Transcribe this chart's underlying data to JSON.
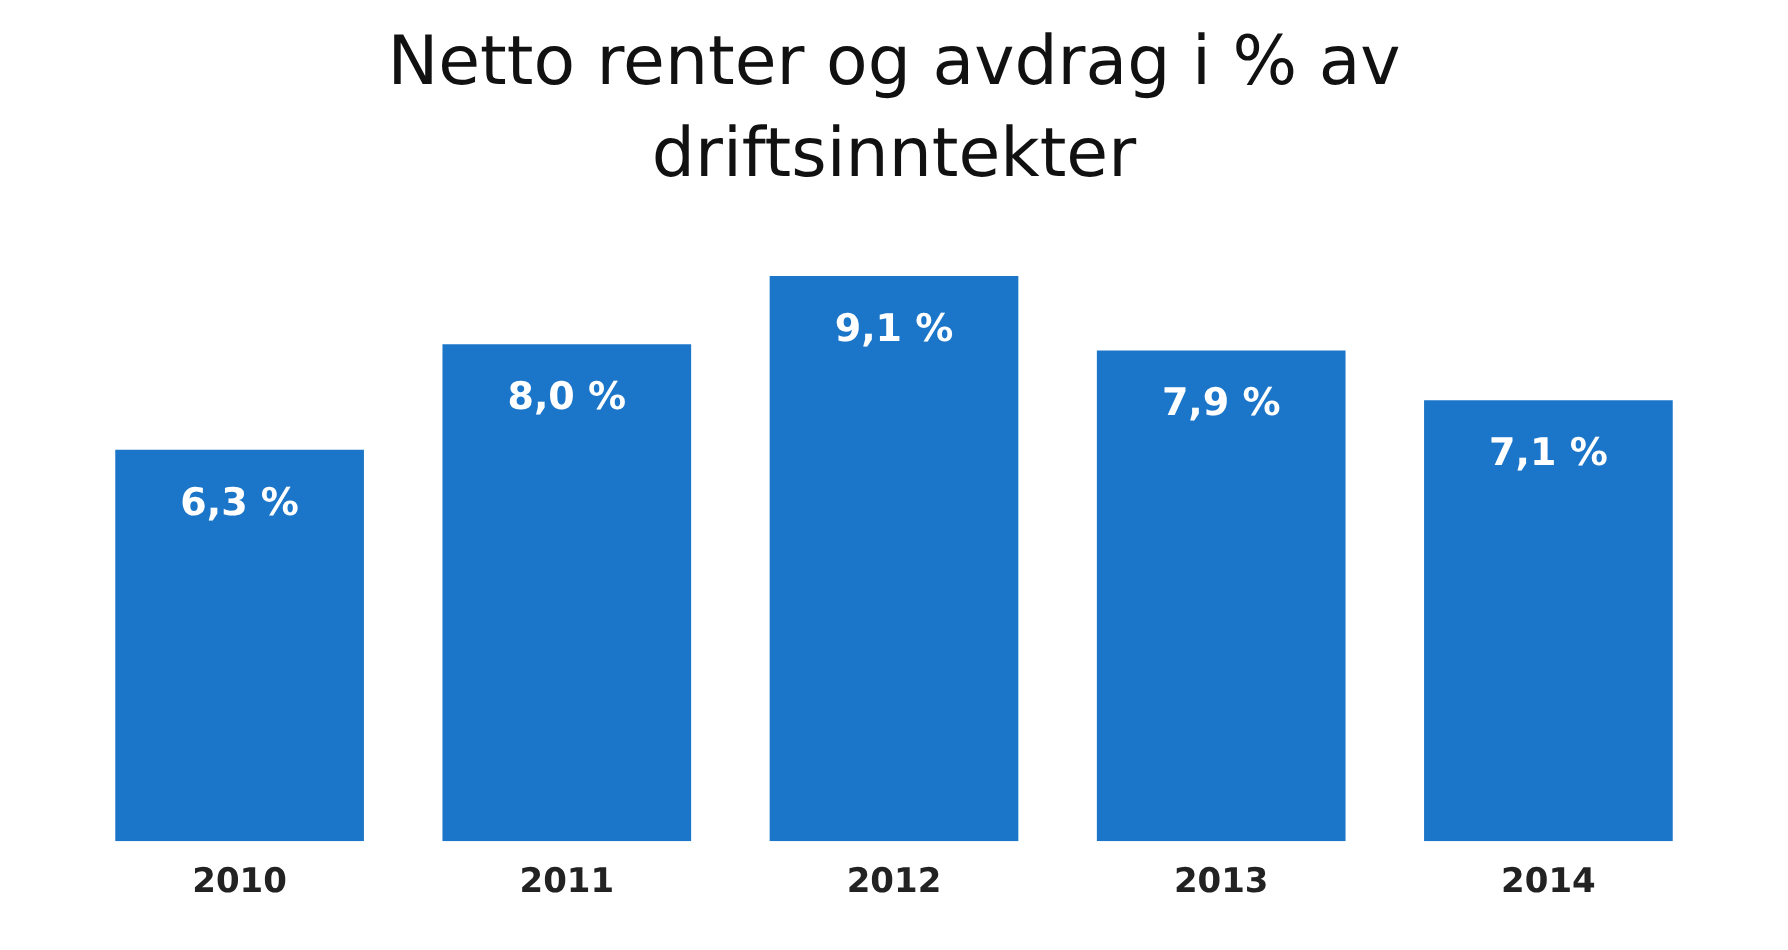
{
  "chart_data": {
    "type": "bar",
    "title": "Netto renter og avdrag i % av driftsinntekter",
    "categories": [
      "2010",
      "2011",
      "2012",
      "2013",
      "2014"
    ],
    "values": [
      6.3,
      8.0,
      9.1,
      7.9,
      7.1
    ],
    "value_labels": [
      "6,3 %",
      "8,0 %",
      "9,1 %",
      "7,9 %",
      "7,1 %"
    ],
    "color": "#1b76c9",
    "grid": false,
    "legend": false
  }
}
